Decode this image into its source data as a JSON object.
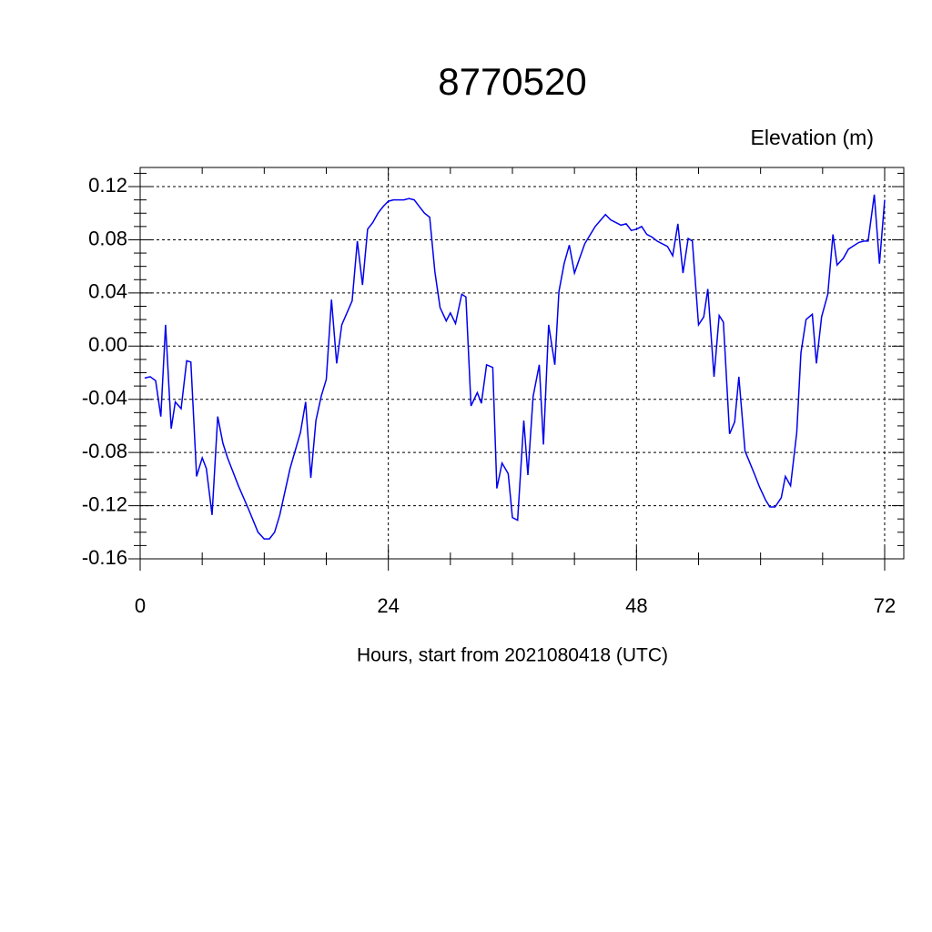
{
  "chart_data": {
    "type": "line",
    "title": "8770520",
    "subtitle": "Elevation (m)",
    "xlabel": "Hours, start from 2021080418 (UTC)",
    "xlim": [
      0,
      73.85
    ],
    "ylim": [
      -0.16,
      0.1344
    ],
    "xticks": [
      0,
      24,
      48,
      72
    ],
    "yticks": [
      0.12,
      0.08,
      0.04,
      {
        "value": 0,
        "label": "0.00"
      },
      -0.04,
      -0.08,
      -0.12,
      -0.16
    ],
    "xminorticks": [
      6,
      12,
      18,
      30,
      36,
      42,
      54,
      60,
      66
    ],
    "yminorticks": [
      0.13,
      0.11,
      0.1,
      0.09,
      0.07,
      0.06,
      0.05,
      0.03,
      0.02,
      0.01,
      -0.01,
      -0.02,
      -0.03,
      -0.05,
      -0.06,
      -0.07,
      -0.09,
      -0.1,
      -0.11,
      -0.13,
      -0.14,
      -0.15
    ],
    "grid": true,
    "series": [
      {
        "color": "#0000ee",
        "x": [
          0.44,
          0.97,
          1.5,
          2.0,
          2.46,
          3.0,
          3.4,
          3.96,
          4.5,
          4.9,
          5.46,
          6.0,
          6.4,
          6.95,
          7.5,
          8.0,
          8.45,
          9.5,
          10.5,
          11.4,
          12.0,
          12.5,
          13.0,
          13.5,
          14.5,
          15.5,
          16.0,
          16.5,
          17.0,
          17.5,
          18.0,
          18.5,
          19.0,
          19.5,
          20.5,
          21.0,
          21.5,
          22.0,
          22.5,
          23.0,
          23.5,
          24.0,
          24.5,
          25.5,
          26.0,
          26.5,
          27.0,
          27.5,
          28.0,
          28.5,
          29.0,
          29.6,
          30.0,
          30.5,
          31.1,
          31.5,
          32.0,
          32.6,
          33.0,
          33.5,
          34.1,
          34.5,
          35.0,
          35.6,
          36.0,
          36.5,
          37.1,
          37.5,
          38.0,
          38.6,
          39.0,
          39.5,
          40.1,
          40.5,
          41.0,
          41.5,
          42.0,
          42.5,
          43.0,
          44.0,
          45.0,
          45.5,
          46.5,
          47.0,
          47.5,
          48.0,
          48.5,
          49.0,
          49.5,
          50.0,
          51.0,
          51.5,
          52.0,
          52.5,
          53.0,
          53.4,
          54.0,
          54.5,
          54.9,
          55.5,
          56.0,
          56.4,
          57.0,
          57.5,
          57.9,
          58.5,
          59.4,
          59.9,
          60.5,
          60.9,
          61.4,
          62.0,
          62.4,
          62.9,
          63.5,
          63.9,
          64.4,
          65.0,
          65.4,
          65.9,
          66.5,
          67.0,
          67.4,
          68.0,
          68.5,
          68.9,
          69.5,
          70.0,
          70.4,
          71.0,
          71.5,
          72.0
        ],
        "values": [
          -0.024,
          -0.023,
          -0.026,
          -0.053,
          0.016,
          -0.062,
          -0.042,
          -0.047,
          -0.011,
          -0.012,
          -0.098,
          -0.084,
          -0.092,
          -0.127,
          -0.053,
          -0.073,
          -0.084,
          -0.105,
          -0.123,
          -0.14,
          -0.145,
          -0.145,
          -0.14,
          -0.127,
          -0.092,
          -0.065,
          -0.042,
          -0.099,
          -0.056,
          -0.038,
          -0.025,
          0.035,
          -0.013,
          0.016,
          0.034,
          0.079,
          0.046,
          0.088,
          0.093,
          0.1,
          0.105,
          0.109,
          0.11,
          0.11,
          0.111,
          0.11,
          0.105,
          0.1,
          0.097,
          0.056,
          0.029,
          0.019,
          0.025,
          0.017,
          0.039,
          0.037,
          -0.045,
          -0.035,
          -0.043,
          -0.014,
          -0.016,
          -0.107,
          -0.088,
          -0.096,
          -0.129,
          -0.131,
          -0.056,
          -0.097,
          -0.038,
          -0.014,
          -0.074,
          0.016,
          -0.014,
          0.041,
          0.062,
          0.076,
          0.055,
          0.066,
          0.077,
          0.09,
          0.099,
          0.095,
          0.091,
          0.092,
          0.087,
          0.088,
          0.09,
          0.084,
          0.082,
          0.079,
          0.075,
          0.068,
          0.092,
          0.055,
          0.081,
          0.079,
          0.016,
          0.022,
          0.043,
          -0.023,
          0.023,
          0.018,
          -0.066,
          -0.057,
          -0.023,
          -0.079,
          -0.096,
          -0.106,
          -0.116,
          -0.121,
          -0.121,
          -0.114,
          -0.098,
          -0.105,
          -0.065,
          -0.005,
          0.02,
          0.024,
          -0.013,
          0.022,
          0.039,
          0.084,
          0.061,
          0.066,
          0.073,
          0.075,
          0.078,
          0.079,
          0.079,
          0.114,
          0.062,
          0.11
        ]
      }
    ]
  }
}
